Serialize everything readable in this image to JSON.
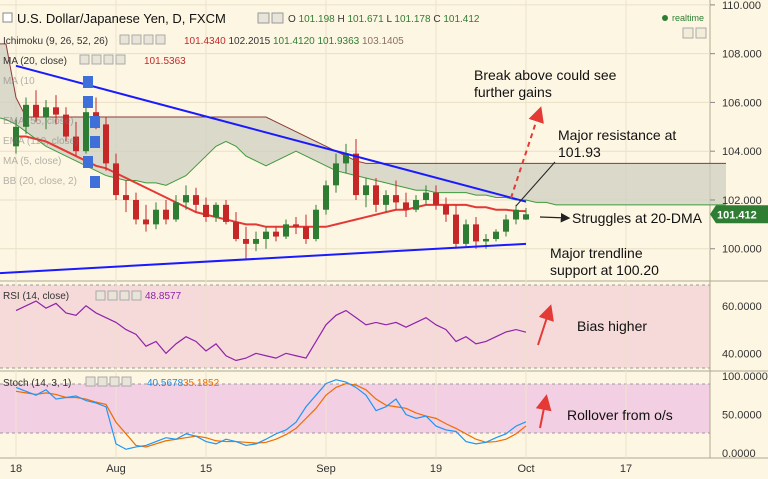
{
  "header": {
    "title": "U.S. Dollar/Japanese Yen, D, FXCM",
    "ohlc": [
      {
        "k": "O",
        "v": "101.198"
      },
      {
        "k": "H",
        "v": "101.671"
      },
      {
        "k": "L",
        "v": "101.178"
      },
      {
        "k": "C",
        "v": "101.412"
      }
    ],
    "realtime": "realtime"
  },
  "legends": {
    "ichimoku": {
      "label": "Ichimoku (9, 26, 52, 26)",
      "values": [
        "101.4340",
        "102.2015",
        "101.4120",
        "101.9363",
        "103.1405"
      ]
    },
    "ma20": {
      "label": "MA (20, close)",
      "value": "101.5363"
    },
    "ma10": {
      "label": "MA (10"
    },
    "ema55": {
      "label": "EMA (55, close)"
    },
    "ema110": {
      "label": "EMA (110, close)"
    },
    "ma5": {
      "label": "MA (5, close)"
    },
    "bb": {
      "label": "BB (20, close, 2)"
    },
    "rsi": {
      "label": "RSI (14, close)",
      "value": "48.8577"
    },
    "stoch": {
      "label": "Stoch (14, 3, 1)",
      "k": "40.5678",
      "d": "35.1852"
    }
  },
  "annotations": {
    "break": "Break above could see\nfurther gains",
    "resistance": "Major resistance at\n101.93",
    "struggles": "Struggles at 20-DMA",
    "support": "Major trendline\nsupport at 100.20",
    "bias": "Bias higher",
    "rollover": "Rollover from o/s"
  },
  "last_price": "101.412",
  "colors": {
    "up": "#2e7d32",
    "down": "#c62828",
    "ma": "#e53935",
    "trendline": "#1a1aff",
    "cloud": "#cfcfc0",
    "rsi": "#8e24aa",
    "stoch_k": "#2196f3",
    "stoch_d": "#ef6c00",
    "last_price_bg": "#2e7d32"
  },
  "chart_data": [
    {
      "type": "candlestick",
      "title": "U.S. Dollar/Japanese Yen, D, FXCM",
      "x_labels": [
        "18",
        "Aug",
        "15",
        "Sep",
        "19",
        "Oct",
        "17"
      ],
      "ylim": [
        98.8,
        110.2
      ],
      "y_ticks": [
        "110.000",
        "108.000",
        "106.000",
        "104.000",
        "102.000",
        "100.000"
      ],
      "ohlc": [
        [
          104.2,
          105.3,
          103.9,
          105.0
        ],
        [
          105.0,
          106.2,
          104.7,
          105.9
        ],
        [
          105.9,
          106.5,
          105.2,
          105.4
        ],
        [
          105.4,
          106.1,
          104.9,
          105.8
        ],
        [
          105.8,
          106.3,
          105.1,
          105.5
        ],
        [
          105.5,
          105.8,
          104.4,
          104.6
        ],
        [
          104.6,
          105.2,
          103.8,
          104.0
        ],
        [
          104.0,
          105.8,
          103.9,
          105.6
        ],
        [
          105.6,
          106.2,
          104.9,
          105.1
        ],
        [
          105.1,
          105.4,
          103.2,
          103.5
        ],
        [
          103.5,
          103.9,
          102.0,
          102.2
        ],
        [
          102.2,
          102.8,
          101.5,
          102.0
        ],
        [
          102.0,
          102.3,
          101.0,
          101.2
        ],
        [
          101.2,
          101.8,
          100.7,
          101.0
        ],
        [
          101.0,
          101.9,
          100.8,
          101.6
        ],
        [
          101.6,
          102.0,
          101.0,
          101.2
        ],
        [
          101.2,
          102.2,
          101.1,
          101.9
        ],
        [
          101.9,
          102.6,
          101.6,
          102.2
        ],
        [
          102.2,
          102.5,
          101.5,
          101.8
        ],
        [
          101.8,
          102.1,
          101.1,
          101.3
        ],
        [
          101.3,
          101.9,
          101.1,
          101.8
        ],
        [
          101.8,
          102.0,
          101.0,
          101.1
        ],
        [
          101.1,
          101.5,
          100.3,
          100.4
        ],
        [
          100.4,
          100.9,
          99.6,
          100.2
        ],
        [
          100.2,
          100.7,
          99.9,
          100.4
        ],
        [
          100.4,
          100.9,
          100.0,
          100.7
        ],
        [
          100.7,
          100.9,
          100.3,
          100.5
        ],
        [
          100.5,
          101.2,
          100.4,
          101.0
        ],
        [
          101.0,
          101.3,
          100.6,
          100.9
        ],
        [
          100.9,
          101.4,
          100.2,
          100.4
        ],
        [
          100.4,
          101.8,
          100.3,
          101.6
        ],
        [
          101.6,
          102.8,
          101.4,
          102.6
        ],
        [
          102.6,
          103.9,
          102.3,
          103.5
        ],
        [
          103.5,
          104.3,
          103.1,
          103.9
        ],
        [
          103.9,
          104.5,
          102.0,
          102.2
        ],
        [
          102.2,
          102.9,
          101.7,
          102.6
        ],
        [
          102.6,
          102.9,
          101.5,
          101.8
        ],
        [
          101.8,
          102.4,
          101.5,
          102.2
        ],
        [
          102.2,
          102.8,
          101.6,
          101.9
        ],
        [
          101.9,
          102.3,
          101.3,
          101.6
        ],
        [
          101.6,
          102.2,
          101.5,
          102.0
        ],
        [
          102.0,
          102.6,
          101.8,
          102.3
        ],
        [
          102.3,
          102.6,
          101.6,
          101.8
        ],
        [
          101.8,
          102.1,
          101.1,
          101.4
        ],
        [
          101.4,
          101.8,
          100.0,
          100.2
        ],
        [
          100.2,
          101.2,
          100.1,
          101.0
        ],
        [
          101.0,
          101.3,
          100.0,
          100.3
        ],
        [
          100.3,
          100.6,
          100.0,
          100.4
        ],
        [
          100.4,
          100.8,
          100.3,
          100.7
        ],
        [
          100.7,
          101.4,
          100.5,
          101.2
        ],
        [
          101.2,
          101.8,
          101.0,
          101.6
        ],
        [
          101.198,
          101.671,
          101.178,
          101.412
        ]
      ],
      "ma20": [
        104.6,
        104.6,
        104.5,
        104.4,
        104.2,
        104.0,
        103.8,
        103.6,
        103.4,
        103.3,
        103.1,
        102.9,
        102.7,
        102.5,
        102.3,
        102.1,
        101.9,
        101.7,
        101.5,
        101.4,
        101.3,
        101.2,
        101.1,
        101.0,
        101.0,
        100.9,
        100.9,
        100.9,
        100.9,
        100.9,
        100.9,
        100.9,
        101.0,
        101.1,
        101.2,
        101.3,
        101.4,
        101.5,
        101.6,
        101.6,
        101.7,
        101.8,
        101.8,
        101.8,
        101.8,
        101.8,
        101.7,
        101.7,
        101.6,
        101.6,
        101.55,
        101.54
      ],
      "kumo_upper": [
        108.4,
        108.4,
        108.4,
        108.4,
        108.4,
        108.4,
        106.2,
        105.4,
        105.4,
        105.4,
        105.4,
        105.4,
        105.4,
        105.4,
        105.4,
        105.4,
        105.4,
        105.4,
        105.4,
        105.4,
        105.4,
        105.4,
        105.4,
        105.4,
        105.4,
        105.4,
        105.4,
        105.4,
        105.4,
        105.4,
        105.4,
        105.4,
        105.2,
        105.0,
        104.8,
        104.6,
        104.4,
        104.2,
        104.0,
        103.8,
        103.6,
        103.5,
        103.5,
        103.5,
        103.5,
        103.5,
        103.5,
        103.5,
        103.5,
        103.5,
        103.5,
        103.5,
        103.5,
        103.5,
        103.5,
        103.5,
        103.5,
        103.5,
        103.5,
        103.5,
        103.5,
        103.5,
        103.5,
        103.5,
        103.5,
        103.5,
        103.5,
        103.5,
        103.5,
        103.5,
        103.5,
        103.5,
        103.5,
        103.5,
        103.5,
        103.5,
        103.5,
        103.5
      ],
      "kumo_lower": [
        106.8,
        106.6,
        106.2,
        105.8,
        105.4,
        105.3,
        105.1,
        104.8,
        104.5,
        104.2,
        104.0,
        103.8,
        103.6,
        103.4,
        103.2,
        103.0,
        102.9,
        102.8,
        102.8,
        102.7,
        102.7,
        102.6,
        102.8,
        103.0,
        103.4,
        103.8,
        104.2,
        104.4,
        104.2,
        103.8,
        103.6,
        103.4,
        103.6,
        103.8,
        104.0,
        103.8,
        103.6,
        103.4,
        103.2,
        103.1,
        103.0,
        102.9,
        102.8,
        102.7,
        102.6,
        102.5,
        102.4,
        102.4,
        102.3,
        102.3,
        102.3,
        102.3,
        102.2,
        102.2,
        102.1,
        102.1,
        102.0,
        102.0,
        101.9,
        101.9,
        101.8,
        101.8,
        101.8,
        101.8,
        101.8,
        101.8,
        101.8,
        101.8,
        101.8,
        101.8,
        101.8,
        101.8,
        101.8,
        101.8,
        101.8,
        101.8,
        101.8,
        101.8
      ],
      "resistance_line": {
        "from": [
          0,
          107.5
        ],
        "to": [
          51,
          101.93
        ]
      },
      "support_line": {
        "from": [
          -6,
          99.0
        ],
        "to": [
          51,
          100.2
        ]
      },
      "last_price": 101.412
    },
    {
      "type": "line",
      "title": "RSI (14, close)",
      "ylim": [
        33,
        70
      ],
      "y_ticks": [
        "60.0000",
        "40.0000"
      ],
      "series": [
        {
          "name": "RSI (14, close)",
          "values": [
            58,
            60,
            62,
            59,
            61,
            57,
            56,
            60,
            57,
            55,
            53,
            50,
            48,
            43,
            45,
            40,
            44,
            47,
            45,
            41,
            44,
            39,
            37,
            38,
            40,
            39,
            38,
            40,
            39,
            38,
            45,
            52,
            56,
            58,
            55,
            52,
            53,
            52,
            53,
            51,
            53,
            55,
            52,
            50,
            45,
            47,
            44,
            45,
            47,
            49,
            50,
            48.9
          ]
        }
      ]
    },
    {
      "type": "line",
      "title": "Stoch (14, 3, 1)",
      "ylim": [
        -5,
        105
      ],
      "y_ticks": [
        "100.0000",
        "50.0000",
        "0.0000"
      ],
      "series": [
        {
          "name": "%K",
          "values": [
            85,
            80,
            75,
            82,
            70,
            72,
            74,
            68,
            65,
            60,
            12,
            5,
            8,
            10,
            15,
            20,
            18,
            25,
            22,
            15,
            12,
            18,
            15,
            10,
            12,
            18,
            25,
            30,
            40,
            60,
            75,
            90,
            95,
            92,
            85,
            75,
            55,
            60,
            70,
            50,
            45,
            48,
            35,
            30,
            28,
            15,
            12,
            14,
            20,
            25,
            35,
            40.57
          ]
        },
        {
          "name": "%D",
          "values": [
            80,
            78,
            76,
            78,
            76,
            72,
            72,
            70,
            66,
            63,
            40,
            25,
            10,
            8,
            12,
            16,
            18,
            20,
            22,
            20,
            16,
            15,
            15,
            14,
            13,
            14,
            18,
            24,
            32,
            45,
            58,
            75,
            85,
            90,
            88,
            82,
            70,
            62,
            60,
            58,
            52,
            48,
            45,
            38,
            32,
            25,
            18,
            14,
            15,
            18,
            25,
            35.19
          ]
        }
      ]
    }
  ]
}
